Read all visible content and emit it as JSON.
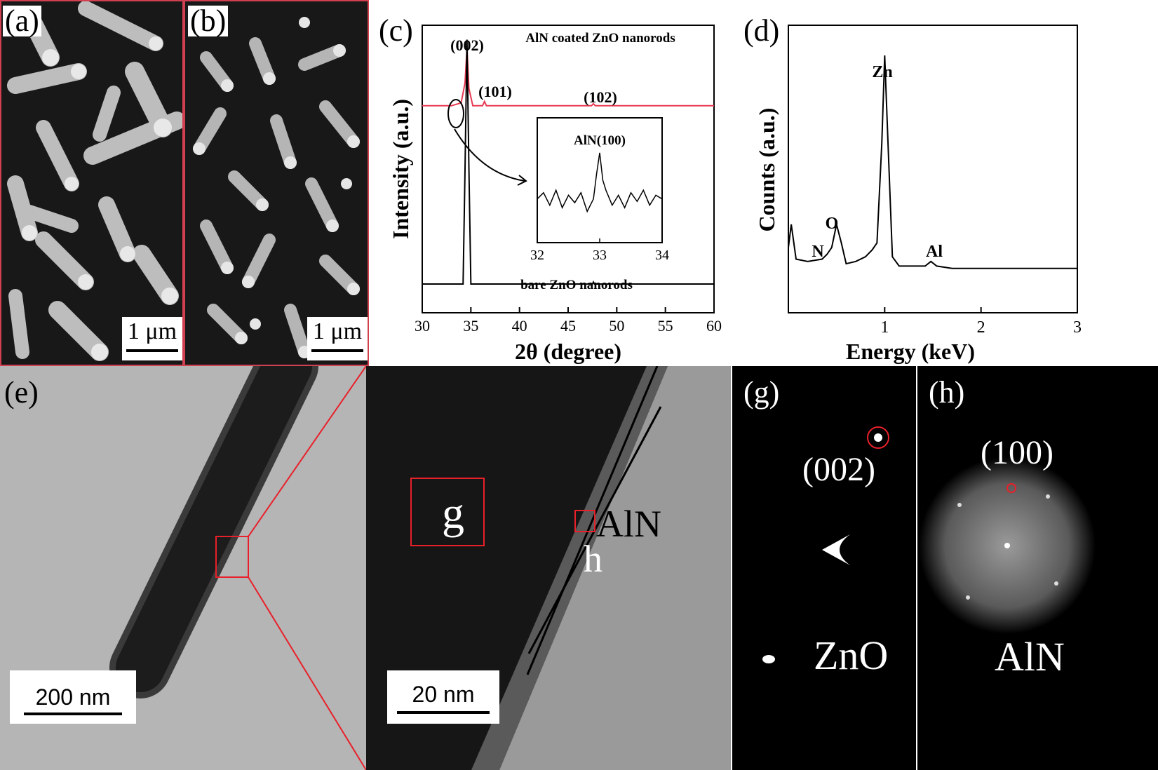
{
  "panels": {
    "a": {
      "label": "(a)",
      "scale": "1 μm"
    },
    "b": {
      "label": "(b)",
      "scale": "1 μm"
    },
    "c": {
      "label": "(c)"
    },
    "d": {
      "label": "(d)"
    },
    "e": {
      "label": "(e)",
      "scale": "200 nm"
    },
    "f": {
      "scale": "20 nm",
      "box_g": "g",
      "box_h": "h",
      "layer": "AlN"
    },
    "g": {
      "label": "(g)",
      "spot": "(002)",
      "material": "ZnO"
    },
    "h": {
      "label": "(h)",
      "spot": "(100)",
      "material": "AlN"
    }
  },
  "colors": {
    "coated": "#e8384f",
    "bare": "#000000",
    "highlight": "#e8202a"
  },
  "chart_data": [
    {
      "type": "line",
      "panel": "c",
      "xlabel": "2θ (degree)",
      "ylabel": "Intensity (a.u.)",
      "xlim": [
        30,
        60
      ],
      "xticks": [
        "30",
        "35",
        "40",
        "45",
        "50",
        "55",
        "60"
      ],
      "series": [
        {
          "name": "AlN coated ZnO nanorods",
          "x": [
            30,
            33.0,
            34.0,
            34.4,
            34.6,
            34.8,
            35.2,
            36.2,
            36.4,
            36.6,
            47.4,
            47.6,
            47.8,
            60
          ],
          "y": [
            0.72,
            0.72,
            0.73,
            0.8,
            0.92,
            0.78,
            0.72,
            0.72,
            0.735,
            0.72,
            0.72,
            0.727,
            0.72,
            0.72
          ]
        },
        {
          "name": "bare ZnO nanorods",
          "x": [
            30,
            34.2,
            34.4,
            34.6,
            34.8,
            35.0,
            47.5,
            47.6,
            47.7,
            60
          ],
          "y": [
            0.1,
            0.1,
            0.5,
            0.95,
            0.5,
            0.1,
            0.1,
            0.107,
            0.1,
            0.1
          ]
        }
      ],
      "annotations": [
        "(002)",
        "(101)",
        "(102)"
      ],
      "inset": {
        "title": "AlN(100)",
        "xlim": [
          32,
          34
        ],
        "xticks": [
          "32",
          "33",
          "34"
        ],
        "x": [
          32.0,
          32.1,
          32.2,
          32.3,
          32.4,
          32.5,
          32.6,
          32.7,
          32.8,
          32.9,
          32.95,
          33.0,
          33.05,
          33.1,
          33.2,
          33.3,
          33.4,
          33.5,
          33.6,
          33.7,
          33.8,
          33.9,
          34.0
        ],
        "y": [
          0.35,
          0.4,
          0.3,
          0.42,
          0.28,
          0.38,
          0.32,
          0.4,
          0.25,
          0.35,
          0.55,
          0.72,
          0.5,
          0.42,
          0.3,
          0.38,
          0.28,
          0.4,
          0.33,
          0.42,
          0.3,
          0.38,
          0.35
        ]
      }
    },
    {
      "type": "line",
      "panel": "d",
      "xlabel": "Energy (keV)",
      "ylabel": "Counts (a.u.)",
      "xlim": [
        0,
        3
      ],
      "xticks": [
        "1",
        "2",
        "3"
      ],
      "series": [
        {
          "x": [
            0.0,
            0.03,
            0.08,
            0.2,
            0.35,
            0.4,
            0.45,
            0.5,
            0.55,
            0.6,
            0.7,
            0.8,
            0.87,
            0.92,
            0.97,
            1.0,
            1.03,
            1.08,
            1.15,
            1.3,
            1.42,
            1.48,
            1.54,
            1.7,
            2.0,
            2.5,
            3.0
          ],
          "y": [
            0.1,
            0.2,
            0.05,
            0.04,
            0.05,
            0.07,
            0.1,
            0.2,
            0.12,
            0.03,
            0.04,
            0.06,
            0.09,
            0.12,
            0.55,
            0.93,
            0.6,
            0.06,
            0.02,
            0.02,
            0.02,
            0.04,
            0.02,
            0.01,
            0.01,
            0.01,
            0.01
          ]
        }
      ],
      "annotations": [
        "N",
        "O",
        "Zn",
        "Al"
      ]
    }
  ]
}
